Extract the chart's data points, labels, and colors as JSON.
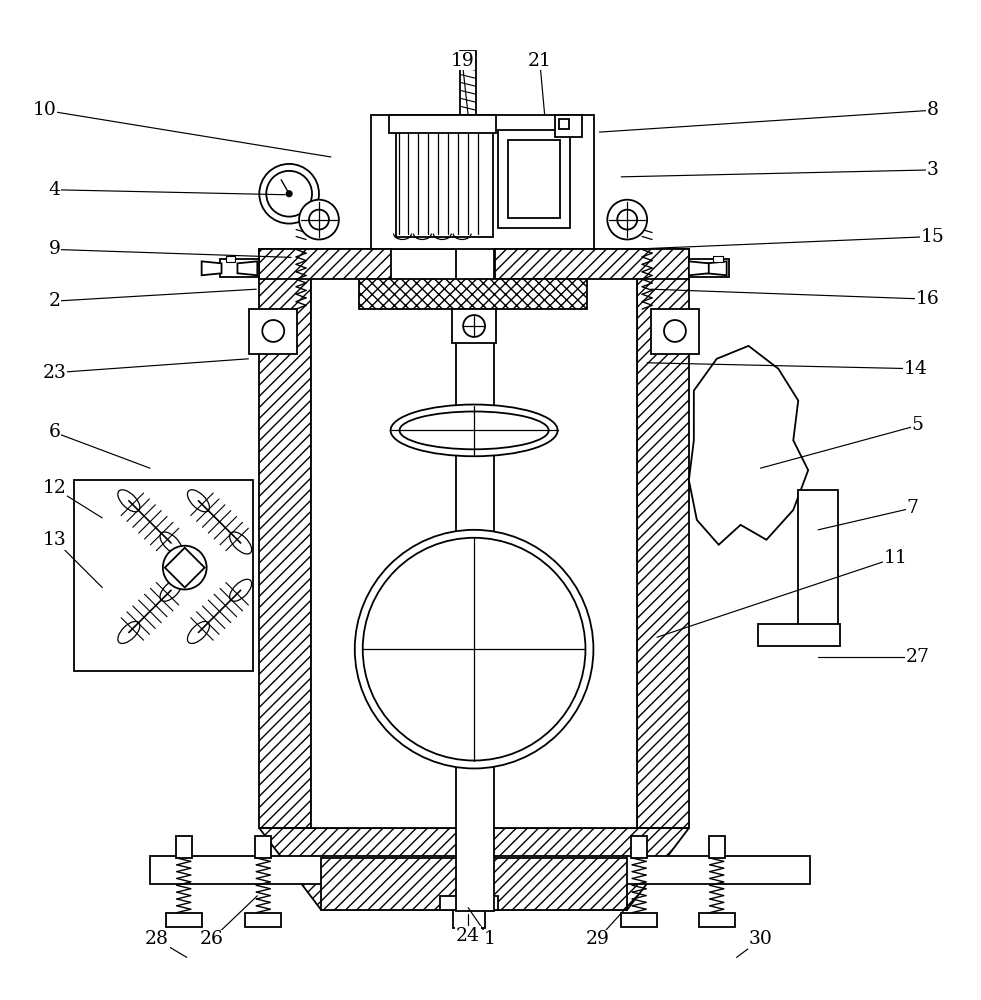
{
  "bg_color": "#ffffff",
  "figsize": [
    9.81,
    10.0
  ],
  "dpi": 100,
  "leaders": [
    [
      "10",
      42,
      108,
      330,
      155
    ],
    [
      "4",
      52,
      188,
      284,
      193
    ],
    [
      "9",
      52,
      248,
      290,
      256
    ],
    [
      "2",
      52,
      300,
      255,
      288
    ],
    [
      "23",
      52,
      372,
      247,
      358
    ],
    [
      "6",
      52,
      432,
      148,
      468
    ],
    [
      "12",
      52,
      488,
      100,
      518
    ],
    [
      "13",
      52,
      540,
      100,
      588
    ],
    [
      "8",
      935,
      108,
      600,
      130
    ],
    [
      "3",
      935,
      168,
      622,
      175
    ],
    [
      "15",
      935,
      235,
      628,
      248
    ],
    [
      "16",
      930,
      298,
      652,
      288
    ],
    [
      "14",
      918,
      368,
      648,
      362
    ],
    [
      "5",
      920,
      425,
      762,
      468
    ],
    [
      "7",
      915,
      508,
      820,
      530
    ],
    [
      "11",
      898,
      558,
      658,
      638
    ],
    [
      "27",
      920,
      658,
      820,
      658
    ],
    [
      "19",
      462,
      58,
      468,
      113
    ],
    [
      "21",
      540,
      58,
      545,
      113
    ],
    [
      "1",
      490,
      942,
      468,
      910
    ],
    [
      "24",
      468,
      938,
      468,
      916
    ],
    [
      "26",
      210,
      942,
      256,
      898
    ],
    [
      "28",
      155,
      942,
      185,
      960
    ],
    [
      "29",
      598,
      942,
      638,
      898
    ],
    [
      "30",
      762,
      942,
      738,
      960
    ]
  ]
}
